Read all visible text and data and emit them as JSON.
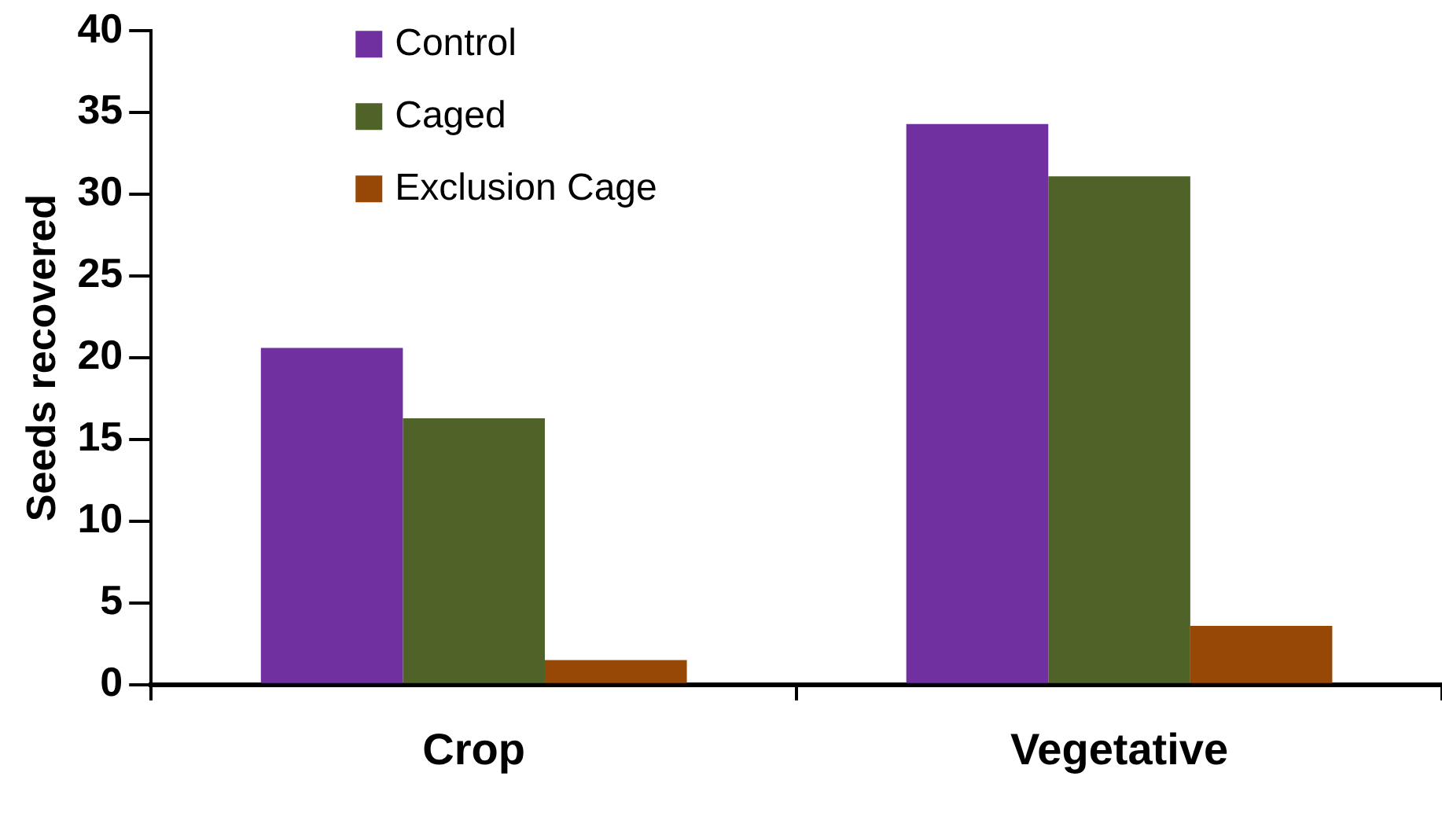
{
  "chart_data": {
    "type": "bar",
    "ylabel": "Seeds recovered",
    "categories": [
      "Crop",
      "Vegetative"
    ],
    "series": [
      {
        "name": "Control",
        "color": "#7030a0",
        "values": [
          20.6,
          34.3
        ]
      },
      {
        "name": "Caged",
        "color": "#4f6228",
        "values": [
          16.3,
          31.1
        ]
      },
      {
        "name": "Exclusion Cage",
        "color": "#974706",
        "values": [
          1.5,
          3.6
        ]
      }
    ],
    "ylim": [
      0,
      40
    ],
    "yticks": [
      0,
      5,
      10,
      15,
      20,
      25,
      30,
      35,
      40
    ],
    "grid": false,
    "legend": "top left"
  }
}
